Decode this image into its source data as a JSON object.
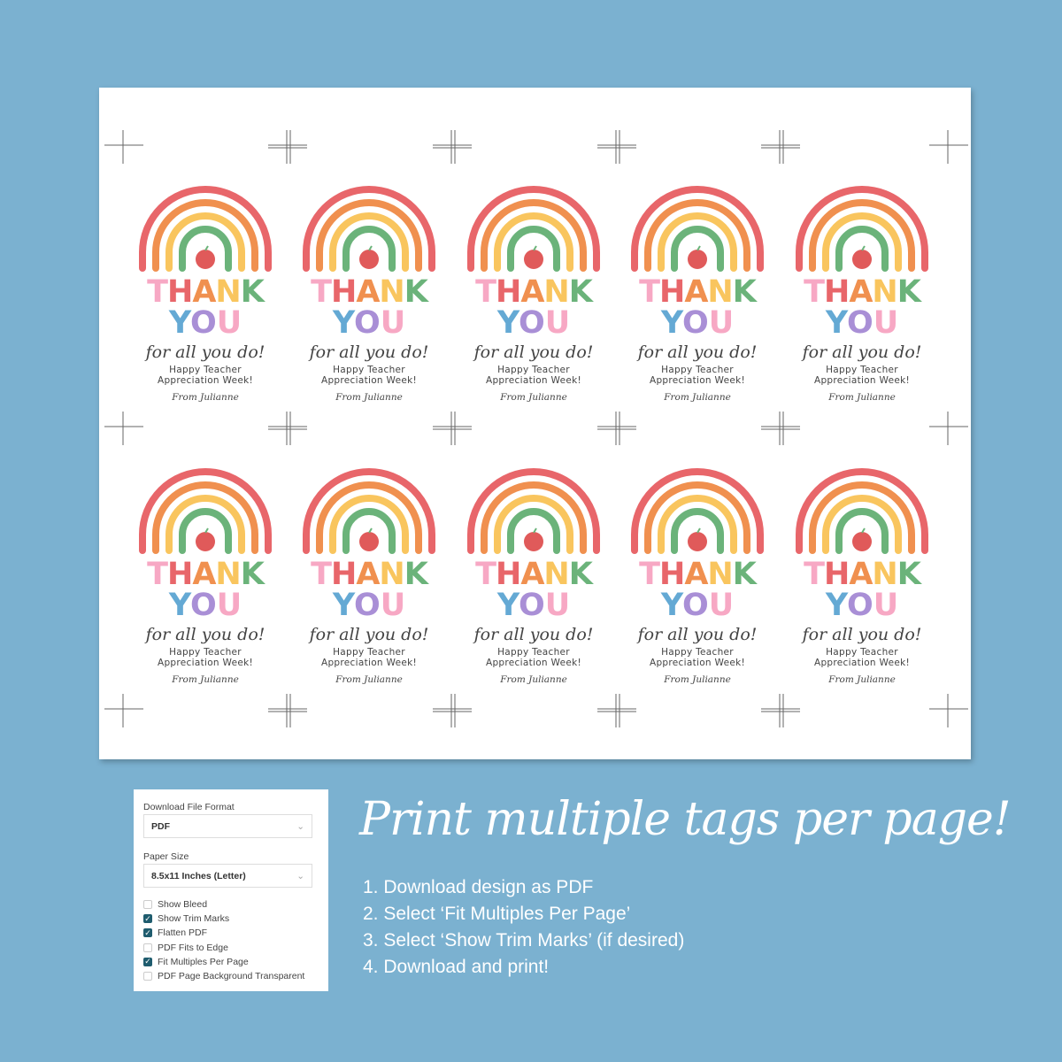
{
  "tag": {
    "thank_letters": [
      "T",
      "H",
      "A",
      "N",
      "K"
    ],
    "you_letters": [
      "Y",
      "O",
      "U"
    ],
    "line1": "for all you do!",
    "line2": "Happy Teacher",
    "line3": "Appreciation Week!",
    "signature": "From Julianne"
  },
  "tag_grid": {
    "columns": 5,
    "rows": 2
  },
  "colors": {
    "background": "#7bb1d0",
    "rainbow": [
      "#e8666a",
      "#f0904f",
      "#f9c55e",
      "#6bb37a",
      "#64a9d4"
    ],
    "thank": [
      "#f7a8c4",
      "#e8666a",
      "#f0904f",
      "#f9c55e",
      "#6bb37a"
    ],
    "you": [
      "#64a9d4",
      "#a98fd6",
      "#f7a8c4"
    ],
    "checkbox_checked": "#1f5c6e"
  },
  "panel": {
    "format_label": "Download File Format",
    "format_value": "PDF",
    "paper_label": "Paper Size",
    "paper_value": "8.5x11 Inches (Letter)",
    "options": [
      {
        "label": "Show Bleed",
        "checked": false
      },
      {
        "label": "Show Trim Marks",
        "checked": true
      },
      {
        "label": "Flatten PDF",
        "checked": true
      },
      {
        "label": "PDF Fits to Edge",
        "checked": false
      },
      {
        "label": "Fit Multiples Per Page",
        "checked": true
      },
      {
        "label": "PDF Page Background Transparent",
        "checked": false
      }
    ]
  },
  "headline": "Print multiple tags per page!",
  "steps": [
    "1. Download design as PDF",
    "2. Select ‘Fit Multiples Per Page’",
    "3. Select ‘Show Trim Marks’ (if desired)",
    "4. Download and print!"
  ]
}
